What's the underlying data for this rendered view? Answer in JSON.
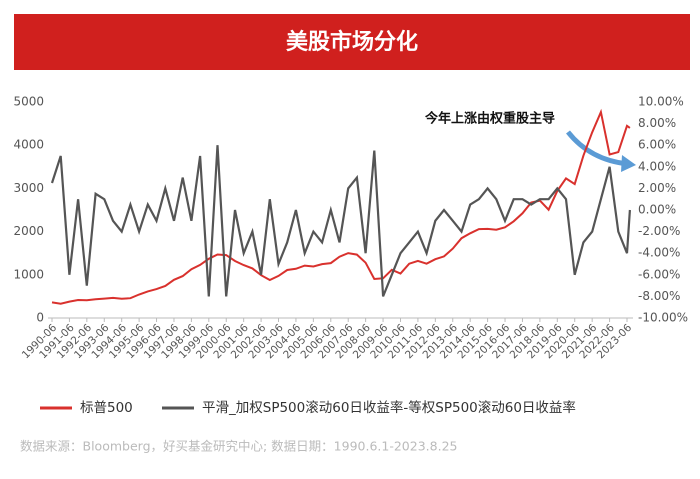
{
  "chart_data": {
    "type": "line",
    "title": "美股市场分化",
    "annotation": "今年上涨由权重股主导",
    "source": "数据来源：Bloomberg，好买基金研究中心; 数据日期：1990.6.1-2023.8.25",
    "x": [
      "1990-06",
      "1990-12",
      "1991-06",
      "1991-12",
      "1992-06",
      "1992-12",
      "1993-06",
      "1993-12",
      "1994-06",
      "1994-12",
      "1995-06",
      "1995-12",
      "1996-06",
      "1996-12",
      "1997-06",
      "1997-12",
      "1998-06",
      "1998-12",
      "1999-06",
      "1999-12",
      "2000-06",
      "2000-12",
      "2001-06",
      "2001-12",
      "2002-06",
      "2002-12",
      "2003-06",
      "2003-12",
      "2004-06",
      "2004-12",
      "2005-06",
      "2005-12",
      "2006-06",
      "2006-12",
      "2007-06",
      "2007-12",
      "2008-06",
      "2008-12",
      "2009-06",
      "2009-12",
      "2010-06",
      "2010-12",
      "2011-06",
      "2011-12",
      "2012-06",
      "2012-12",
      "2013-06",
      "2013-12",
      "2014-06",
      "2014-12",
      "2015-06",
      "2015-12",
      "2016-06",
      "2016-12",
      "2017-06",
      "2017-12",
      "2018-06",
      "2018-12",
      "2019-06",
      "2019-12",
      "2020-06",
      "2020-12",
      "2021-06",
      "2021-12",
      "2022-06",
      "2022-12",
      "2023-06",
      "2023-08"
    ],
    "series": [
      {
        "name": "标普500",
        "color": "#d9312d",
        "axis": "y",
        "values": [
          360,
          330,
          380,
          417,
          410,
          435,
          450,
          466,
          445,
          459,
          545,
          615,
          670,
          740,
          885,
          970,
          1130,
          1229,
          1370,
          1469,
          1455,
          1320,
          1224,
          1148,
          990,
          880,
          975,
          1112,
          1140,
          1212,
          1191,
          1248,
          1270,
          1418,
          1503,
          1468,
          1280,
          903,
          919,
          1115,
          1031,
          1258,
          1321,
          1258,
          1362,
          1426,
          1606,
          1848,
          1960,
          2059,
          2063,
          2044,
          2099,
          2239,
          2423,
          2674,
          2718,
          2507,
          2942,
          3231,
          3100,
          3756,
          4298,
          4766,
          3785,
          3840,
          4450,
          4400
        ]
      },
      {
        "name": "平滑_加权SP500滚动60日收益率-等权SP500滚动60日收益率",
        "color": "#555555",
        "axis": "y2",
        "values": [
          2.5,
          5,
          -6,
          1,
          -7,
          1.5,
          1,
          -1,
          -2,
          0.5,
          -2,
          0.5,
          -1,
          2,
          -1,
          3,
          -1,
          5,
          -8,
          6,
          -8,
          0,
          -4,
          -2,
          -6,
          1,
          -5,
          -3,
          0,
          -4,
          -2,
          -3,
          0,
          -3,
          2,
          3,
          -4,
          5.5,
          -8,
          -6,
          -4,
          -3,
          -2,
          -4,
          -1,
          0,
          -1,
          -2,
          0.5,
          1,
          2,
          1,
          -1,
          1,
          1,
          0.5,
          1,
          1,
          2,
          1,
          -6,
          -3,
          -2,
          1,
          4,
          -2,
          -4,
          0
        ]
      }
    ],
    "xticks": [
      "1990-06",
      "1991-06",
      "1992-06",
      "1993-06",
      "1994-06",
      "1995-06",
      "1996-06",
      "1997-06",
      "1998-06",
      "1999-06",
      "2000-06",
      "2001-06",
      "2002-06",
      "2003-06",
      "2004-06",
      "2005-06",
      "2006-06",
      "2007-06",
      "2008-06",
      "2009-06",
      "2010-06",
      "2011-06",
      "2012-06",
      "2013-06",
      "2014-06",
      "2015-06",
      "2016-06",
      "2017-06",
      "2018-06",
      "2019-06",
      "2020-06",
      "2021-06",
      "2022-06",
      "2023-06"
    ],
    "ylim": [
      0,
      5000
    ],
    "yticks": [
      0,
      1000,
      2000,
      3000,
      4000,
      5000
    ],
    "y2lim": [
      -10,
      10
    ],
    "y2ticks": [
      {
        "value": -10,
        "label": "-10.00%"
      },
      {
        "value": -8,
        "label": "-8.00%"
      },
      {
        "value": -6,
        "label": "-6.00%"
      },
      {
        "value": -4,
        "label": "-4.00%"
      },
      {
        "value": -2,
        "label": "-2.00%"
      },
      {
        "value": 0,
        "label": "0.00%"
      },
      {
        "value": 2,
        "label": "2.00%"
      },
      {
        "value": 4,
        "label": "4.00%"
      },
      {
        "value": 6,
        "label": "6.00%"
      },
      {
        "value": 8,
        "label": "8.00%"
      },
      {
        "value": 10,
        "label": "10.00%"
      }
    ]
  }
}
